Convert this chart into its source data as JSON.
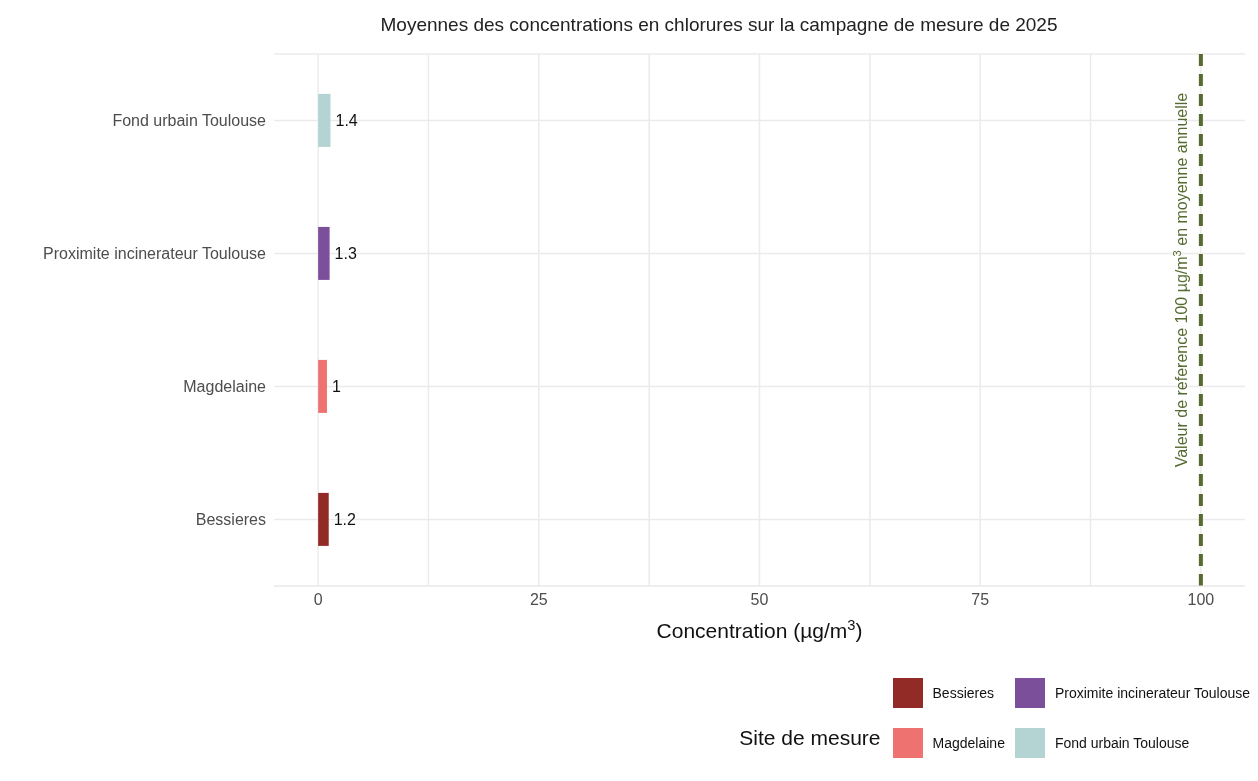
{
  "chart_data": {
    "type": "bar",
    "orientation": "horizontal",
    "stacked": true,
    "title": "Moyennes des concentrations en chlorures sur la campagne de mesure de 2025",
    "xlabel": "Concentration (µg/m$^{3}$)",
    "categories": [
      "Fond urbain Toulouse",
      "Proximite incinerateur Toulouse",
      "Magdelaine",
      "Bessieres"
    ],
    "series": [
      {
        "name": "Bessieres",
        "color": "#922b25",
        "values": [
          null,
          null,
          null,
          1.2
        ]
      },
      {
        "name": "Magdelaine",
        "color": "#ee7270",
        "values": [
          null,
          null,
          1,
          null
        ]
      },
      {
        "name": "Proximite incinerateur Toulouse",
        "color": "#7b4f9a",
        "values": [
          null,
          1.3,
          null,
          null
        ]
      },
      {
        "name": "Fond urbain Toulouse",
        "color": "#b3d4d3",
        "values": [
          1.4,
          null,
          null,
          null
        ]
      }
    ],
    "data_labels": true,
    "xlim": [
      -5,
      105
    ],
    "xticks": [
      0,
      {
        "value": 12.5,
        "label": null
      },
      25,
      {
        "value": 37.5,
        "label": null
      },
      50,
      {
        "value": 62.5,
        "label": null
      },
      75,
      {
        "value": 87.5,
        "label": null
      },
      100
    ],
    "grid": true,
    "legend": "bottom",
    "legend_title": "Site de mesure",
    "ref_lines": [
      {
        "axis": "x",
        "value": 100,
        "label": "Valeur de reference 100 µg/m$^{3}$ en moyenne annuelle",
        "color": "#556b2f",
        "line_style": "dashed"
      }
    ]
  }
}
